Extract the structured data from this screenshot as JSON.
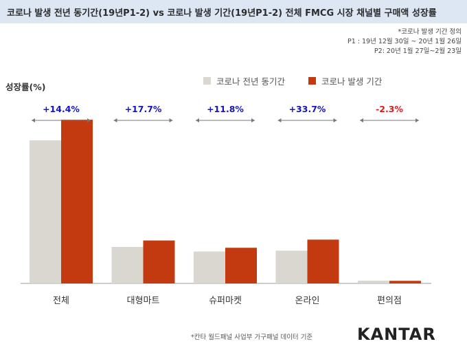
{
  "title": "코로나 발생 전년 동기간(19년P1-2) vs 코로나 발생 기간(19년P1-2) 전체 FMCG 시장 채널별 구매액 성장률",
  "note": [
    "*코로나 발생 기간 정의",
    "P1 : 19년 12월 30일 ~ 20년 1월 26일",
    "P2: 20년 1월 27일~2월 23일"
  ],
  "source": "*칸타 월드패널 사업부 가구패널 데이터 기준",
  "logo": "KANTAR",
  "colors": {
    "title_bg": "#dde6f3",
    "prev": "#d9d7d0",
    "covid": "#c33a10",
    "growth_pos": "#1515c0",
    "growth_neg": "#e01818"
  },
  "chart_data": {
    "type": "bar",
    "ylabel": "성장률(%)",
    "categories": [
      "전체",
      "대형마트",
      "슈퍼마켓",
      "온라인",
      "편의점"
    ],
    "series": [
      {
        "name": "코로나 전년 동기간",
        "values": [
          100,
          25.5,
          22.3,
          22.9,
          1.9
        ]
      },
      {
        "name": "코로나 발생 기간",
        "values": [
          114.4,
          30.0,
          24.9,
          30.6,
          1.8
        ]
      }
    ],
    "growth_labels": [
      "+14.4%",
      "+17.7%",
      "+11.8%",
      "+33.7%",
      "-2.3%"
    ],
    "ylim": [
      0,
      125
    ],
    "grid": false,
    "legend_position": "top"
  }
}
